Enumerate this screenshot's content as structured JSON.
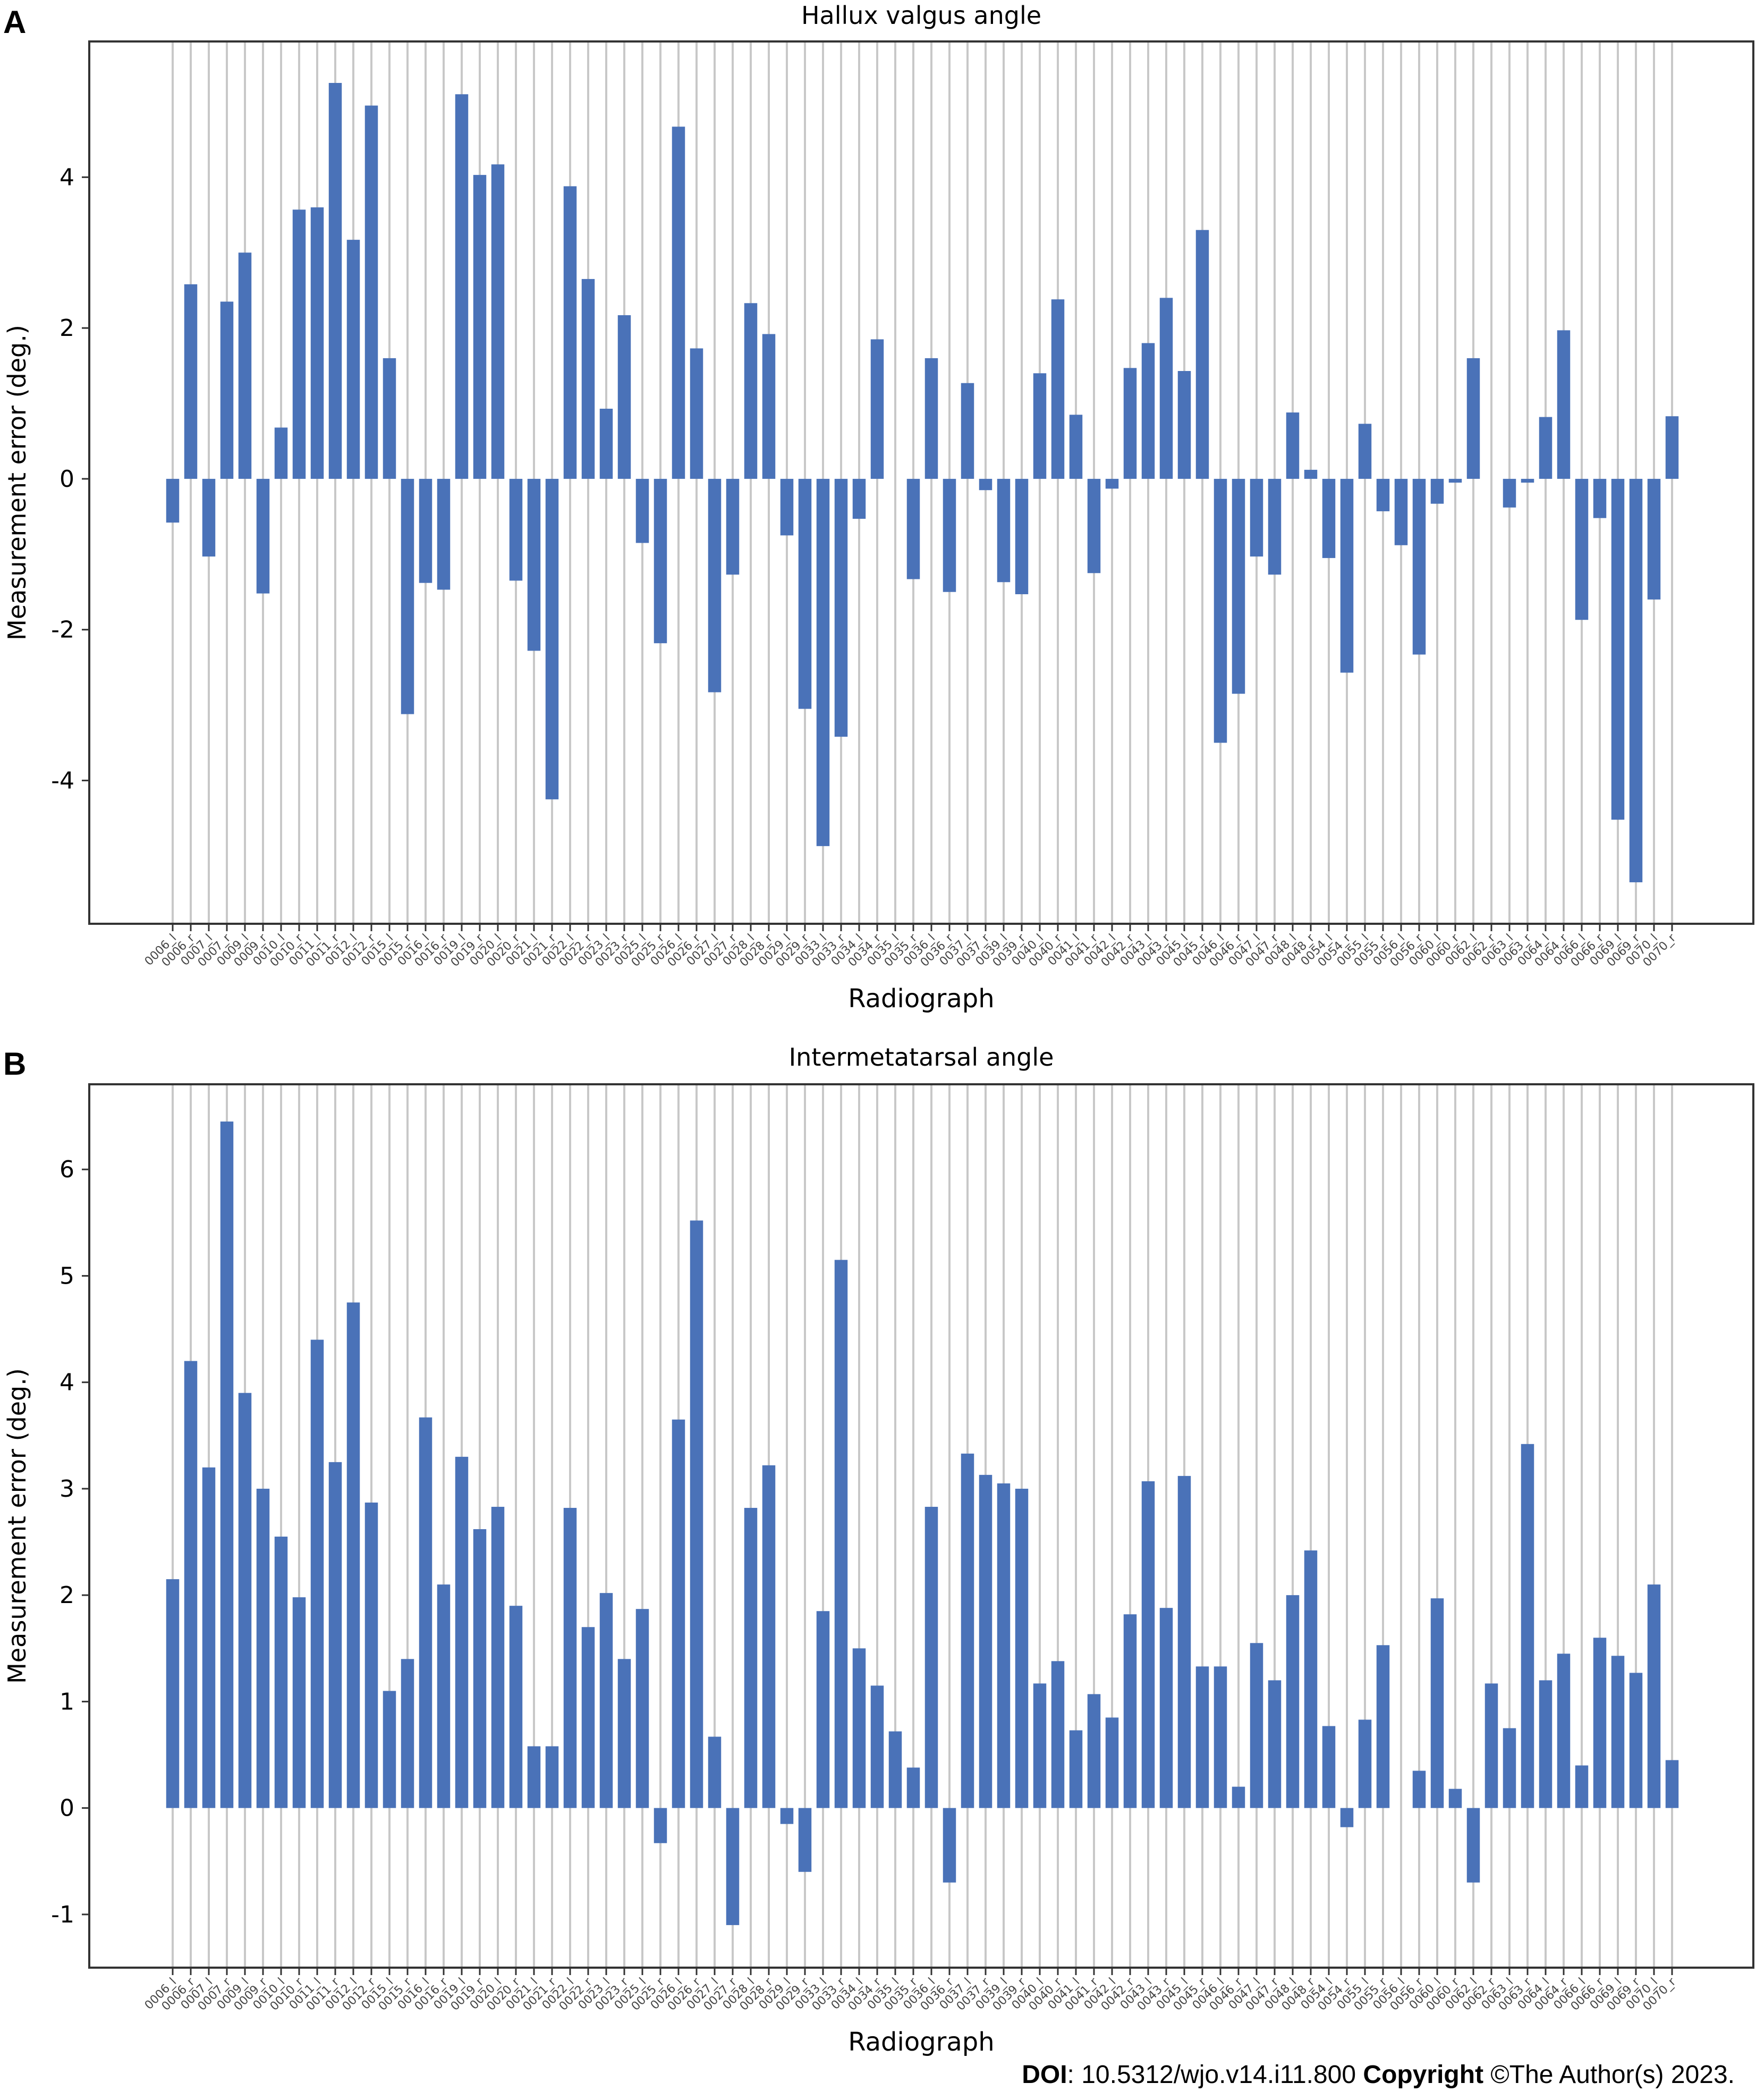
{
  "footer": {
    "doi_label": "DOI",
    "doi_value": ": 10.5312/wjo.v14.i11.800",
    "copyright_label": "Copyright",
    "copyright_value": " ©The Author(s) 2023."
  },
  "colors": {
    "bar": "#4a72b8",
    "grid": "#c8c8c8",
    "axis": "#333333"
  },
  "chart_data": [
    {
      "type": "bar",
      "panel_label": "A",
      "title": "Hallux valgus angle",
      "xlabel": "Radiograph",
      "ylabel": "Measurement error (deg.)",
      "ylim": [
        -5.9,
        5.8
      ],
      "yticks": [
        -4,
        -2,
        0,
        2,
        4
      ],
      "grid": "vertical",
      "categories": [
        "0006_l",
        "0006_r",
        "0007_l",
        "0007_r",
        "0009_l",
        "0009_r",
        "0010_l",
        "0010_r",
        "0011_l",
        "0011_r",
        "0012_l",
        "0012_r",
        "0015_l",
        "0015_r",
        "0016_l",
        "0016_r",
        "0019_l",
        "0019_r",
        "0020_l",
        "0020_r",
        "0021_l",
        "0021_r",
        "0022_l",
        "0022_r",
        "0023_l",
        "0023_r",
        "0025_l",
        "0025_r",
        "0026_l",
        "0026_r",
        "0027_l",
        "0027_r",
        "0028_l",
        "0028_r",
        "0029_l",
        "0029_r",
        "0033_l",
        "0033_r",
        "0034_l",
        "0034_r",
        "0035_l",
        "0035_r",
        "0036_l",
        "0036_r",
        "0037_l",
        "0037_r",
        "0039_l",
        "0039_r",
        "0040_l",
        "0040_r",
        "0041_l",
        "0041_r",
        "0042_l",
        "0042_r",
        "0043_l",
        "0043_r",
        "0045_l",
        "0045_r",
        "0046_l",
        "0046_r",
        "0047_l",
        "0047_r",
        "0048_l",
        "0048_r",
        "0054_l",
        "0054_r",
        "0055_l",
        "0055_r",
        "0056_l",
        "0056_r",
        "0060_l",
        "0060_r",
        "0062_l",
        "0062_r",
        "0063_l",
        "0063_r",
        "0064_l",
        "0064_r",
        "0066_l",
        "0066_r",
        "0069_l",
        "0069_r",
        "0070_l",
        "0070_r"
      ],
      "values": [
        -0.58,
        2.58,
        -1.03,
        2.35,
        3.0,
        -1.52,
        0.68,
        3.57,
        3.6,
        5.25,
        3.17,
        4.95,
        1.6,
        -3.12,
        -1.38,
        -1.47,
        5.1,
        4.03,
        4.17,
        -1.35,
        -2.28,
        -4.25,
        3.88,
        2.65,
        0.93,
        2.17,
        -0.85,
        -2.18,
        4.67,
        1.73,
        -2.83,
        -1.27,
        2.33,
        1.92,
        -0.75,
        -3.05,
        -4.87,
        -3.42,
        -0.53,
        1.85,
        0.0,
        -1.33,
        1.6,
        -1.5,
        1.27,
        -0.15,
        -1.37,
        -1.53,
        1.4,
        2.38,
        0.85,
        -1.25,
        -0.13,
        1.47,
        1.8,
        2.4,
        1.43,
        3.3,
        -3.5,
        -2.85,
        -1.03,
        -1.27,
        0.88,
        0.12,
        -1.05,
        -2.57,
        0.73,
        -0.43,
        -0.88,
        -2.33,
        -0.33,
        -0.05,
        1.6,
        0.0,
        -0.38,
        -0.05,
        0.82,
        1.97,
        -1.87,
        -0.52,
        -4.52,
        -5.35,
        -1.6,
        0.83
      ]
    },
    {
      "type": "bar",
      "panel_label": "B",
      "title": "Intermetatarsal angle",
      "xlabel": "Radiograph",
      "ylabel": "Measurement error (deg.)",
      "ylim": [
        -1.5,
        6.8
      ],
      "yticks": [
        -1,
        0,
        1,
        2,
        3,
        4,
        5,
        6
      ],
      "grid": "vertical",
      "categories": [
        "0006_l",
        "0006_r",
        "0007_l",
        "0007_r",
        "0009_l",
        "0009_r",
        "0010_l",
        "0010_r",
        "0011_l",
        "0011_r",
        "0012_l",
        "0012_r",
        "0015_l",
        "0015_r",
        "0016_l",
        "0016_r",
        "0019_l",
        "0019_r",
        "0020_l",
        "0020_r",
        "0021_l",
        "0021_r",
        "0022_l",
        "0022_r",
        "0023_l",
        "0023_r",
        "0025_l",
        "0025_r",
        "0026_l",
        "0026_r",
        "0027_l",
        "0027_r",
        "0028_l",
        "0028_r",
        "0029_l",
        "0029_r",
        "0033_l",
        "0033_r",
        "0034_l",
        "0034_r",
        "0035_l",
        "0035_r",
        "0036_l",
        "0036_r",
        "0037_l",
        "0037_r",
        "0039_l",
        "0039_r",
        "0040_l",
        "0040_r",
        "0041_l",
        "0041_r",
        "0042_l",
        "0042_r",
        "0043_l",
        "0043_r",
        "0045_l",
        "0045_r",
        "0046_l",
        "0046_r",
        "0047_l",
        "0047_r",
        "0048_l",
        "0048_r",
        "0054_l",
        "0054_r",
        "0055_l",
        "0055_r",
        "0056_l",
        "0056_r",
        "0060_l",
        "0060_r",
        "0062_l",
        "0062_r",
        "0063_l",
        "0063_r",
        "0064_l",
        "0064_r",
        "0066_l",
        "0066_r",
        "0069_l",
        "0069_r",
        "0070_l",
        "0070_r"
      ],
      "values": [
        2.15,
        4.2,
        3.2,
        6.45,
        3.9,
        3.0,
        2.55,
        1.98,
        4.4,
        3.25,
        4.75,
        2.87,
        1.1,
        1.4,
        3.67,
        2.1,
        3.3,
        2.62,
        2.83,
        1.9,
        0.58,
        0.58,
        2.82,
        1.7,
        2.02,
        1.4,
        1.87,
        -0.33,
        3.65,
        5.52,
        0.67,
        -1.1,
        2.82,
        3.22,
        -0.15,
        -0.6,
        1.85,
        5.15,
        1.5,
        1.15,
        0.72,
        0.38,
        2.83,
        -0.7,
        3.33,
        3.13,
        3.05,
        3.0,
        1.17,
        1.38,
        0.73,
        1.07,
        0.85,
        1.82,
        3.07,
        1.88,
        3.12,
        1.33,
        1.33,
        0.2,
        1.55,
        1.2,
        2.0,
        2.42,
        0.77,
        -0.18,
        0.83,
        1.53,
        0.0,
        0.35,
        1.97,
        0.18,
        -0.7,
        1.17,
        0.75,
        3.42,
        1.2,
        1.45,
        0.4,
        1.6,
        1.43,
        1.27,
        2.1,
        0.45
      ]
    }
  ]
}
